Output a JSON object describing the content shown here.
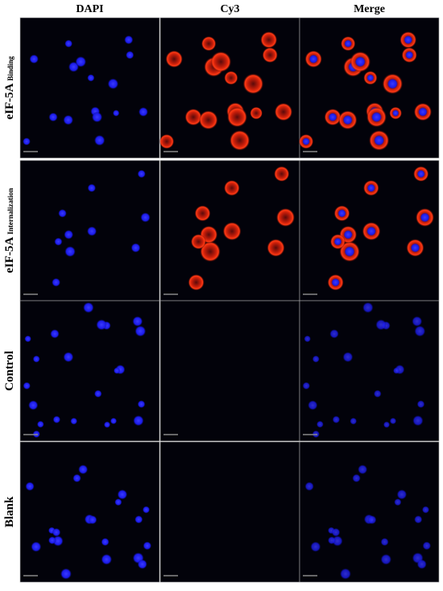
{
  "columns": [
    "DAPI",
    "Cy3",
    "Merge"
  ],
  "rows": [
    {
      "label": "eIF-5A",
      "sub": "Binding"
    },
    {
      "label": "eIF-5A",
      "sub": "Internalization"
    },
    {
      "label": "Control"
    },
    {
      "label": "Blank"
    }
  ]
}
